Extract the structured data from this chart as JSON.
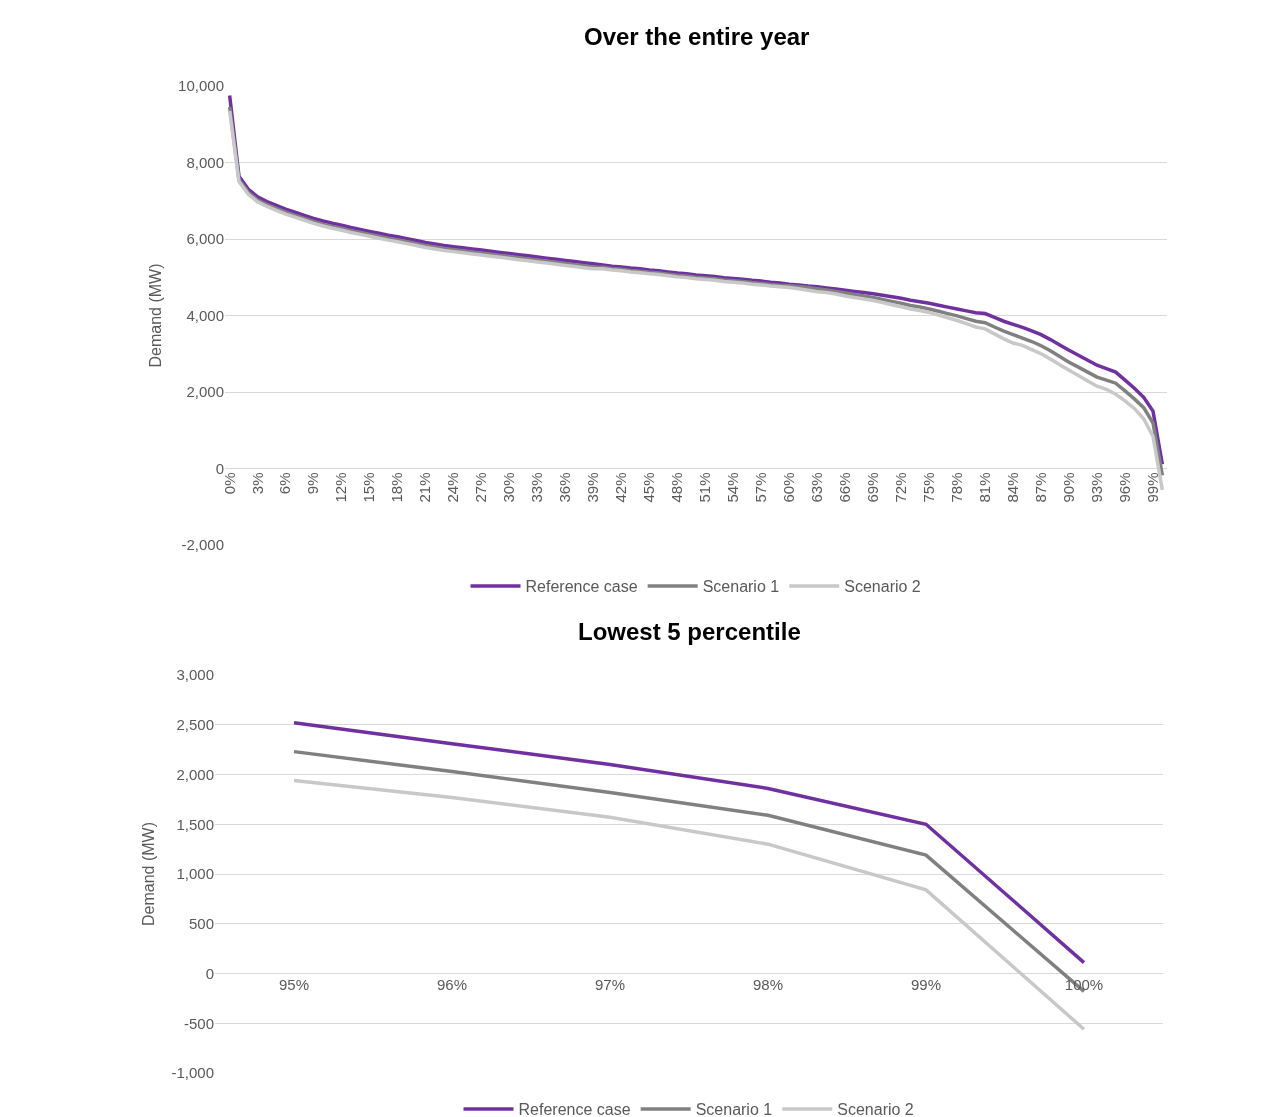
{
  "chart_data": [
    {
      "type": "line",
      "title": "Over the entire year",
      "ylabel": "Demand (MW)",
      "categories": [
        "0%",
        null,
        null,
        "3%",
        null,
        null,
        "6%",
        null,
        null,
        "9%",
        null,
        null,
        "12%",
        null,
        null,
        "15%",
        null,
        null,
        "18%",
        null,
        null,
        "21%",
        null,
        null,
        "24%",
        null,
        null,
        "27%",
        null,
        null,
        "30%",
        null,
        null,
        "33%",
        null,
        null,
        "36%",
        null,
        null,
        "39%",
        null,
        null,
        "42%",
        null,
        null,
        "45%",
        null,
        null,
        "48%",
        null,
        null,
        "51%",
        null,
        null,
        "54%",
        null,
        null,
        "57%",
        null,
        null,
        "60%",
        null,
        null,
        "63%",
        null,
        null,
        "66%",
        null,
        null,
        "69%",
        null,
        null,
        "72%",
        null,
        null,
        "75%",
        null,
        null,
        "78%",
        null,
        null,
        "81%",
        null,
        null,
        "84%",
        null,
        null,
        "87%",
        null,
        null,
        "90%",
        null,
        null,
        "93%",
        null,
        null,
        "96%",
        null,
        null,
        "99%",
        null
      ],
      "series": [
        {
          "name": "Reference case",
          "color": "#7030a0",
          "values": [
            9750,
            7640,
            7300,
            7100,
            6980,
            6880,
            6780,
            6700,
            6620,
            6540,
            6470,
            6410,
            6360,
            6300,
            6250,
            6200,
            6150,
            6100,
            6060,
            6010,
            5960,
            5910,
            5870,
            5830,
            5800,
            5770,
            5740,
            5710,
            5680,
            5650,
            5620,
            5590,
            5560,
            5530,
            5500,
            5470,
            5440,
            5410,
            5380,
            5350,
            5320,
            5290,
            5270,
            5240,
            5220,
            5190,
            5170,
            5140,
            5110,
            5090,
            5060,
            5040,
            5020,
            4990,
            4970,
            4950,
            4920,
            4900,
            4870,
            4850,
            4820,
            4800,
            4770,
            4750,
            4720,
            4690,
            4660,
            4630,
            4600,
            4570,
            4530,
            4490,
            4450,
            4400,
            4360,
            4320,
            4270,
            4220,
            4170,
            4120,
            4070,
            4050,
            3950,
            3850,
            3770,
            3690,
            3600,
            3500,
            3370,
            3230,
            3090,
            2960,
            2830,
            2700,
            2610,
            2520,
            2310,
            2100,
            1860,
            1500,
            110
          ]
        },
        {
          "name": "Scenario 1",
          "color": "#808080",
          "values": [
            9450,
            7550,
            7220,
            7020,
            6900,
            6800,
            6700,
            6620,
            6540,
            6460,
            6390,
            6330,
            6280,
            6220,
            6170,
            6120,
            6070,
            6020,
            5980,
            5930,
            5880,
            5830,
            5790,
            5750,
            5720,
            5690,
            5660,
            5630,
            5600,
            5570,
            5540,
            5510,
            5480,
            5450,
            5420,
            5390,
            5360,
            5330,
            5300,
            5270,
            5260,
            5230,
            5210,
            5180,
            5160,
            5130,
            5110,
            5080,
            5050,
            5030,
            5000,
            4980,
            4960,
            4930,
            4910,
            4890,
            4860,
            4840,
            4810,
            4790,
            4780,
            4760,
            4730,
            4700,
            4670,
            4630,
            4590,
            4550,
            4510,
            4470,
            4420,
            4370,
            4320,
            4260,
            4220,
            4170,
            4110,
            4050,
            3990,
            3920,
            3850,
            3810,
            3700,
            3590,
            3500,
            3410,
            3320,
            3210,
            3080,
            2930,
            2780,
            2650,
            2520,
            2390,
            2310,
            2230,
            2030,
            1820,
            1590,
            1190,
            -180
          ]
        },
        {
          "name": "Scenario 2",
          "color": "#c8c8c8",
          "values": [
            9350,
            7500,
            7170,
            6970,
            6850,
            6750,
            6650,
            6570,
            6490,
            6410,
            6340,
            6280,
            6230,
            6170,
            6120,
            6070,
            6020,
            5970,
            5930,
            5880,
            5830,
            5780,
            5740,
            5700,
            5670,
            5640,
            5610,
            5580,
            5550,
            5520,
            5490,
            5460,
            5430,
            5400,
            5370,
            5340,
            5310,
            5280,
            5250,
            5220,
            5220,
            5190,
            5170,
            5140,
            5120,
            5090,
            5070,
            5040,
            5010,
            4990,
            4960,
            4940,
            4920,
            4890,
            4870,
            4850,
            4820,
            4800,
            4770,
            4750,
            4730,
            4700,
            4660,
            4620,
            4600,
            4560,
            4510,
            4470,
            4430,
            4390,
            4340,
            4280,
            4230,
            4170,
            4130,
            4080,
            4010,
            3940,
            3870,
            3790,
            3700,
            3650,
            3520,
            3390,
            3280,
            3220,
            3110,
            3000,
            2860,
            2710,
            2570,
            2430,
            2290,
            2150,
            2070,
            1940,
            1770,
            1570,
            1300,
            840,
            -560
          ]
        }
      ],
      "ylim": [
        -2000,
        10000
      ],
      "yticks": [
        {
          "value": -2000,
          "label": "-2,000"
        },
        0,
        {
          "value": 2000,
          "label": "2,000"
        },
        {
          "value": 4000,
          "label": "4,000"
        },
        {
          "value": 6000,
          "label": "6,000"
        },
        {
          "value": 8000,
          "label": "8,000"
        },
        {
          "value": 10000,
          "label": "10,000"
        }
      ],
      "grid": "y",
      "legend": "bottom",
      "marker": "none",
      "line_style": "solid"
    },
    {
      "type": "line",
      "title": "Lowest 5 percentile",
      "ylabel": "Demand (MW)",
      "categories": [
        "95%",
        "96%",
        "97%",
        "98%",
        "99%",
        "100%"
      ],
      "series": [
        {
          "name": "Reference case",
          "color": "#7030a0",
          "values": [
            2520,
            2310,
            2100,
            1860,
            1500,
            110
          ]
        },
        {
          "name": "Scenario 1",
          "color": "#808080",
          "values": [
            2230,
            2030,
            1820,
            1590,
            1190,
            -180
          ]
        },
        {
          "name": "Scenario 2",
          "color": "#c8c8c8",
          "values": [
            1940,
            1770,
            1570,
            1300,
            840,
            -560
          ]
        }
      ],
      "ylim": [
        -1000,
        3000
      ],
      "yticks": [
        {
          "value": -1000,
          "label": "-1,000"
        },
        {
          "value": -500,
          "label": "-500"
        },
        0,
        500,
        {
          "value": 1000,
          "label": "1,000"
        },
        {
          "value": 1500,
          "label": "1,500"
        },
        {
          "value": 2000,
          "label": "2,000"
        },
        {
          "value": 2500,
          "label": "2,500"
        },
        {
          "value": 3000,
          "label": "3,000"
        }
      ],
      "grid": "y",
      "legend": "bottom",
      "marker": "none",
      "line_style": "solid"
    }
  ]
}
